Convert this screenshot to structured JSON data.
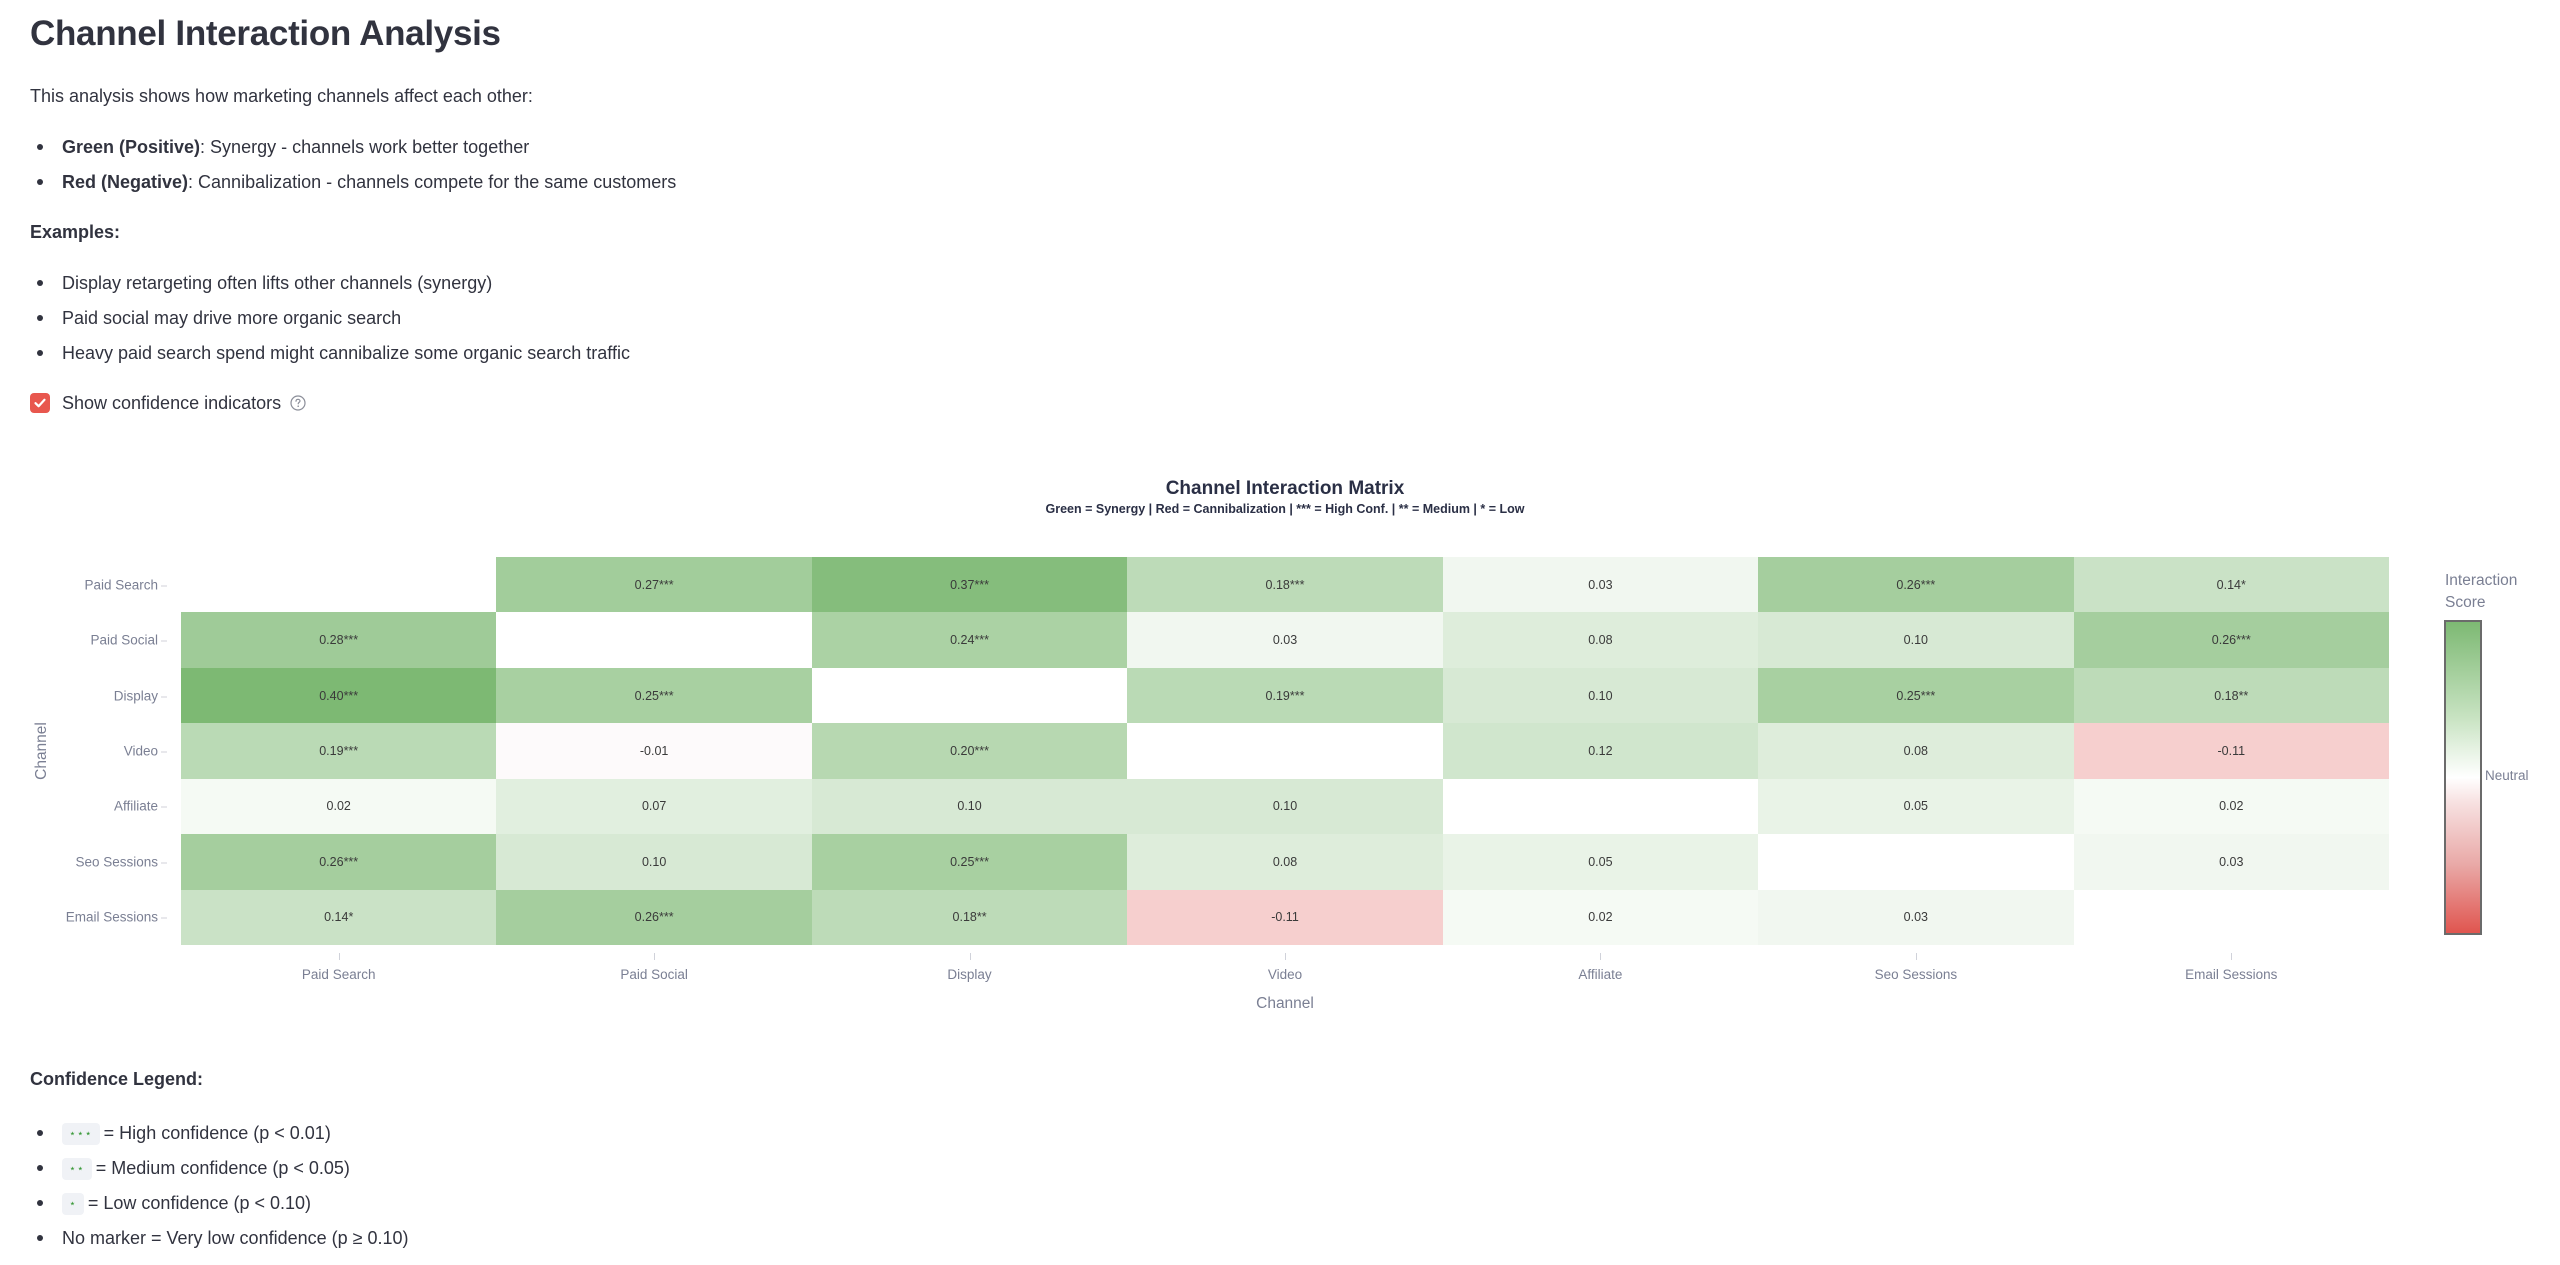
{
  "page": {
    "title": "Channel Interaction Analysis",
    "intro": "This analysis shows how marketing channels affect each other:",
    "meaning": [
      {
        "bold": "Green (Positive)",
        "text": ": Synergy - channels work better together"
      },
      {
        "bold": "Red (Negative)",
        "text": ": Cannibalization - channels compete for the same customers"
      }
    ],
    "examples_heading": "Examples:",
    "examples": [
      "Display retargeting often lifts other channels (synergy)",
      "Paid social may drive more organic search",
      "Heavy paid search spend might cannibalize some organic search traffic"
    ],
    "checkbox": {
      "label": "Show confidence indicators",
      "checked": true,
      "help_icon": "question-circle-icon"
    }
  },
  "legend": {
    "title": "Confidence Legend:",
    "items": [
      {
        "marker": "⋆⋆⋆",
        "text": "= High confidence (p < 0.01)"
      },
      {
        "marker": "⋆⋆",
        "text": "= Medium confidence (p < 0.05)"
      },
      {
        "marker": "⋆",
        "text": "= Low confidence (p < 0.10)"
      },
      {
        "marker": "",
        "text": "No marker = Very low confidence (p ≥ 0.10)"
      }
    ]
  },
  "colors": {
    "positive_max": "#7db973",
    "neutral": "#ffffff",
    "negative_max": "#e0554f",
    "checkbox": "#e8574e"
  },
  "chart_data": {
    "type": "heatmap",
    "title": "Channel Interaction Matrix",
    "subtitle": "Green = Synergy | Red = Cannibalization | *** = High Conf. | ** = Medium | * = Low",
    "xlabel": "Channel",
    "ylabel": "Channel",
    "x": [
      "Paid Search",
      "Paid Social",
      "Display",
      "Video",
      "Affiliate",
      "Seo Sessions",
      "Email Sessions"
    ],
    "y": [
      "Paid Search",
      "Paid Social",
      "Display",
      "Video",
      "Affiliate",
      "Seo Sessions",
      "Email Sessions"
    ],
    "values": [
      [
        null,
        0.27,
        0.37,
        0.18,
        0.03,
        0.26,
        0.14
      ],
      [
        0.28,
        null,
        0.24,
        0.03,
        0.08,
        0.1,
        0.26
      ],
      [
        0.4,
        0.25,
        null,
        0.19,
        0.1,
        0.25,
        0.18
      ],
      [
        0.19,
        -0.01,
        0.2,
        null,
        0.12,
        0.08,
        -0.11
      ],
      [
        0.02,
        0.07,
        0.1,
        0.1,
        null,
        0.05,
        0.02
      ],
      [
        0.26,
        0.1,
        0.25,
        0.08,
        0.05,
        null,
        0.03
      ],
      [
        0.14,
        0.26,
        0.18,
        -0.11,
        0.02,
        0.03,
        null
      ]
    ],
    "labels": [
      [
        "",
        "0.27***",
        "0.37***",
        "0.18***",
        "0.03",
        "0.26***",
        "0.14*"
      ],
      [
        "0.28***",
        "",
        "0.24***",
        "0.03",
        "0.08",
        "0.10",
        "0.26***"
      ],
      [
        "0.40***",
        "0.25***",
        "",
        "0.19***",
        "0.10",
        "0.25***",
        "0.18**"
      ],
      [
        "0.19***",
        "-0.01",
        "0.20***",
        "",
        "0.12",
        "0.08",
        "-0.11"
      ],
      [
        "0.02",
        "0.07",
        "0.10",
        "0.10",
        "",
        "0.05",
        "0.02"
      ],
      [
        "0.26***",
        "0.10",
        "0.25***",
        "0.08",
        "0.05",
        "",
        "0.03"
      ],
      [
        "0.14*",
        "0.26***",
        "0.18**",
        "-0.11",
        "0.02",
        "0.03",
        ""
      ]
    ],
    "colorbar": {
      "title": "Interaction Score",
      "tick_labels": [
        "Neutral"
      ],
      "range": [
        -0.4,
        0.4
      ]
    },
    "grid": false
  }
}
